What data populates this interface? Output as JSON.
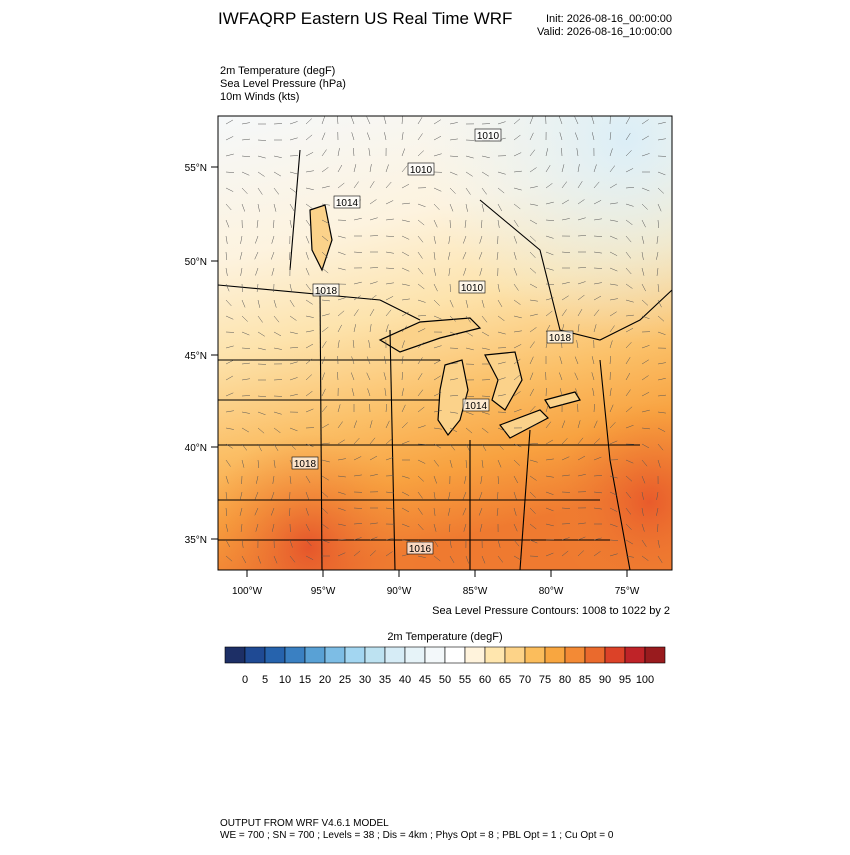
{
  "header": {
    "title": "IWFAQRP Eastern US Real Time WRF",
    "init": "Init: 2026-08-16_00:00:00",
    "valid": "Valid: 2026-08-16_10:00:00"
  },
  "fields": [
    "2m Temperature   (degF)",
    "Sea Level Pressure   (hPa)",
    "10m Winds   (kts)"
  ],
  "map": {
    "lat_labels": [
      "55°N",
      "50°N",
      "45°N",
      "40°N",
      "35°N"
    ],
    "lon_labels": [
      "100°W",
      "95°W",
      "90°W",
      "85°W",
      "80°W",
      "75°W"
    ],
    "contour_labels": [
      "1010",
      "1010",
      "1014",
      "1018",
      "1010",
      "1018",
      "1014",
      "1018",
      "1016"
    ],
    "contour_note": "Sea Level Pressure Contours: 1008 to 1022 by 2"
  },
  "colorbar": {
    "title": "2m Temperature  (degF)",
    "levels": [
      0,
      5,
      10,
      15,
      20,
      25,
      30,
      35,
      40,
      45,
      50,
      55,
      60,
      65,
      70,
      75,
      80,
      85,
      90,
      95,
      100
    ],
    "colors": [
      "#1d2f66",
      "#1f4a94",
      "#2663ad",
      "#3a80c2",
      "#59a1d5",
      "#7dbde5",
      "#a3d6f1",
      "#bde2f1",
      "#d6ecf6",
      "#e6f3f8",
      "#f3f8fa",
      "#ffffff",
      "#fff3dc",
      "#ffe6ae",
      "#fdd388",
      "#fbbd5c",
      "#f8a640",
      "#f38a35",
      "#ea6a2d",
      "#dc4228",
      "#bf2328",
      "#991b1e"
    ]
  },
  "footer": {
    "line1": "OUTPUT FROM WRF V4.6.1 MODEL",
    "line2": "WE = 700 ; SN = 700 ; Levels = 38 ; Dis = 4km ; Phys Opt = 8 ; PBL Opt = 1 ; Cu Opt = 0"
  }
}
